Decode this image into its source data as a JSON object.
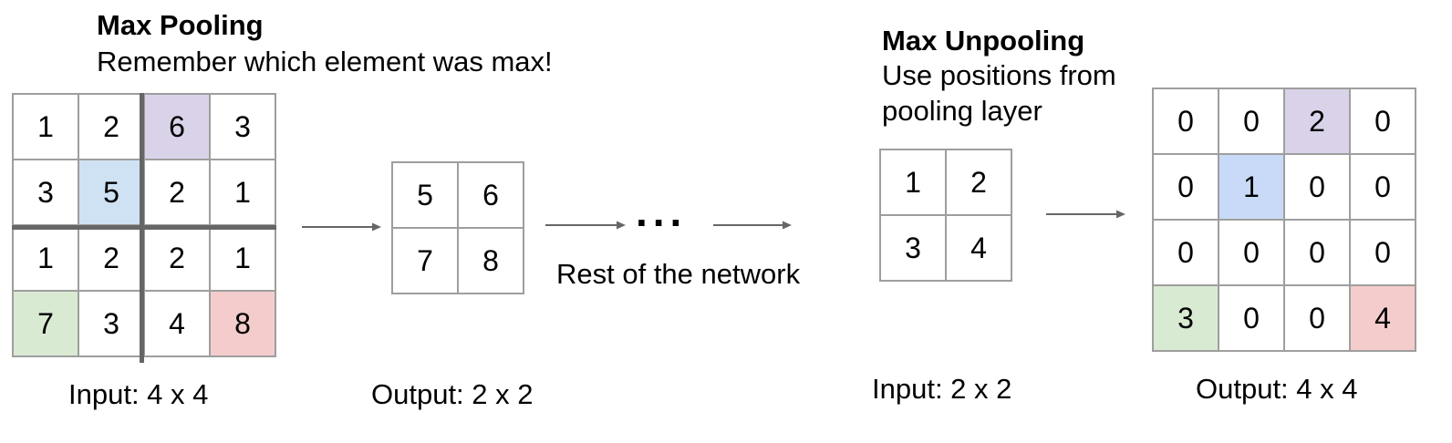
{
  "pooling": {
    "title": "Max Pooling",
    "subtitle": "Remember which element was max!",
    "input_label": "Input: 4 x 4",
    "output_label": "Output: 2 x 2",
    "input_grid": [
      [
        "1",
        "2",
        "6",
        "3"
      ],
      [
        "3",
        "5",
        "2",
        "1"
      ],
      [
        "1",
        "2",
        "2",
        "1"
      ],
      [
        "7",
        "3",
        "4",
        "8"
      ]
    ],
    "output_grid": [
      [
        "5",
        "6"
      ],
      [
        "7",
        "8"
      ]
    ],
    "highlights": [
      {
        "row": 0,
        "col": 2,
        "color": "#d9d2e9"
      },
      {
        "row": 1,
        "col": 1,
        "color": "#cfe2f3"
      },
      {
        "row": 3,
        "col": 0,
        "color": "#d9ead3"
      },
      {
        "row": 3,
        "col": 3,
        "color": "#f4cccc"
      }
    ]
  },
  "network": {
    "dots": "...",
    "label": "Rest of the network"
  },
  "unpooling": {
    "title": "Max Unpooling",
    "subtitle_line1": "Use positions from",
    "subtitle_line2": "pooling layer",
    "input_label": "Input: 2 x 2",
    "output_label": "Output: 4 x 4",
    "input_grid": [
      [
        "1",
        "2"
      ],
      [
        "3",
        "4"
      ]
    ],
    "output_grid": [
      [
        "0",
        "0",
        "2",
        "0"
      ],
      [
        "0",
        "1",
        "0",
        "0"
      ],
      [
        "0",
        "0",
        "0",
        "0"
      ],
      [
        "3",
        "0",
        "0",
        "4"
      ]
    ],
    "highlights": [
      {
        "row": 0,
        "col": 2,
        "color": "#d9d2e9"
      },
      {
        "row": 1,
        "col": 1,
        "color": "#c9daf8"
      },
      {
        "row": 3,
        "col": 0,
        "color": "#d9ead3"
      },
      {
        "row": 3,
        "col": 3,
        "color": "#f4cccc"
      }
    ]
  },
  "colors": {
    "grid_line": "#9e9e9e",
    "divider": "#666666",
    "arrow": "#666666"
  }
}
